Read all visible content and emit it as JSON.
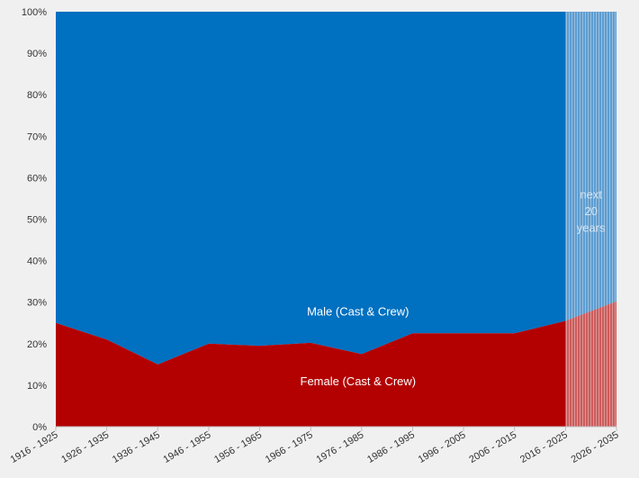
{
  "chart_data": {
    "type": "area",
    "stacked": true,
    "normalized": true,
    "categories": [
      "1916 - 1925",
      "1926 - 1935",
      "1936 - 1945",
      "1946 - 1955",
      "1956 - 1965",
      "1966 - 1975",
      "1976 - 1985",
      "1986 - 1995",
      "1996 - 2005",
      "2006 - 2015",
      "2016 - 2025",
      "2026 - 2035"
    ],
    "series": [
      {
        "name": "Female (Cast & Crew)",
        "color": "#b30000",
        "forecast_color": "#cc5c5c",
        "values": [
          25,
          21,
          15,
          20,
          19.5,
          20.2,
          17.5,
          22.5,
          22.5,
          22.5,
          25.5,
          30.2
        ]
      },
      {
        "name": "Male (Cast & Crew)",
        "color": "#0070c0",
        "forecast_color": "#5d9dd0",
        "values": [
          75,
          79,
          85,
          80,
          80.5,
          79.8,
          82.5,
          77.5,
          77.5,
          77.5,
          74.5,
          69.8
        ]
      }
    ],
    "y_ticks": [
      "0%",
      "10%",
      "20%",
      "30%",
      "40%",
      "50%",
      "60%",
      "70%",
      "80%",
      "90%",
      "100%"
    ],
    "ylim": [
      0,
      100
    ],
    "grid": false,
    "forecast": {
      "from_category": "2016 - 2025",
      "to_category": "2026 - 2035",
      "label_lines": [
        "next",
        "20",
        "years"
      ]
    }
  }
}
